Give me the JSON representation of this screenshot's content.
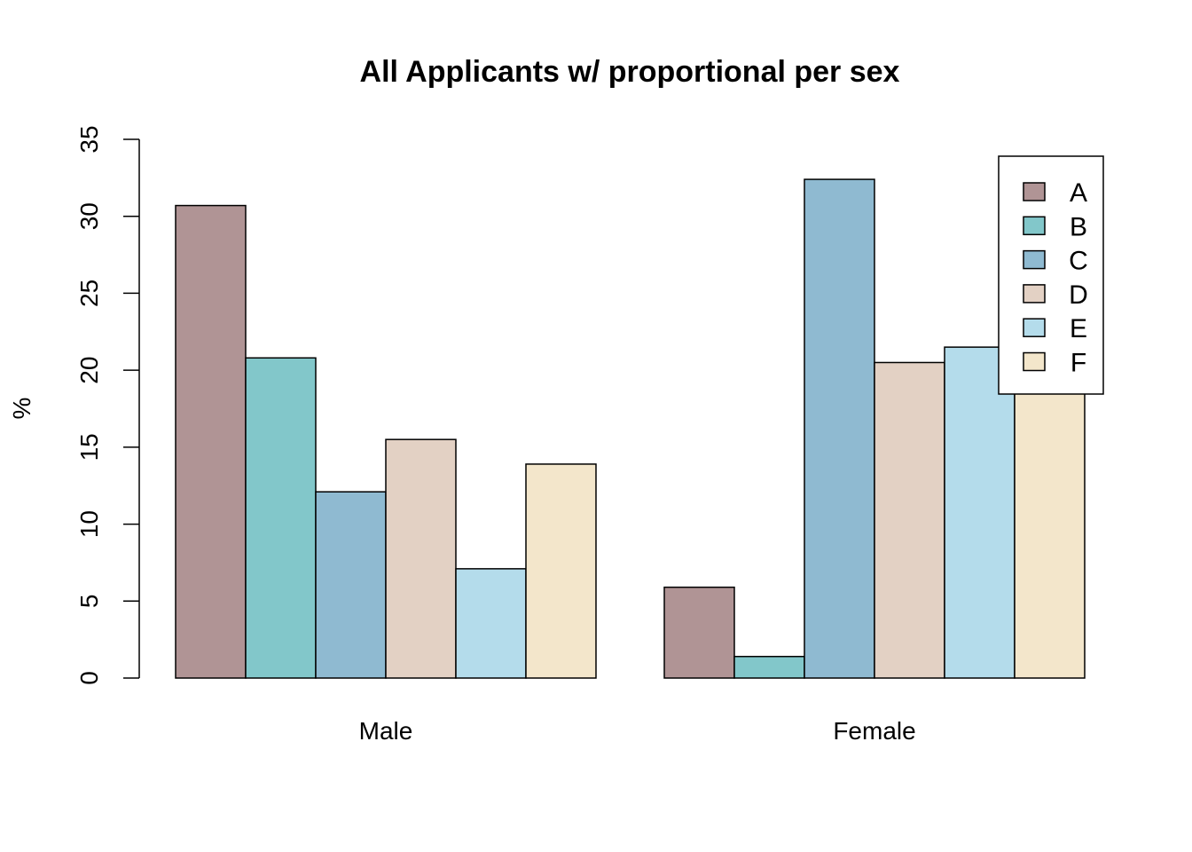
{
  "chart_data": {
    "type": "bar",
    "mode": "grouped",
    "title": "All Applicants w/ proportional per sex",
    "xlabel": "",
    "ylabel": "%",
    "ylim": [
      0,
      35
    ],
    "yticks": [
      0,
      5,
      10,
      15,
      20,
      25,
      30,
      35
    ],
    "grid": false,
    "legend_position": "top-right",
    "categories": [
      "Male",
      "Female"
    ],
    "series": [
      {
        "name": "A",
        "color": "#B09495",
        "values": [
          30.7,
          5.9
        ]
      },
      {
        "name": "B",
        "color": "#82C7CA",
        "values": [
          20.8,
          1.4
        ]
      },
      {
        "name": "C",
        "color": "#8FBAD1",
        "values": [
          12.1,
          32.4
        ]
      },
      {
        "name": "D",
        "color": "#E3D1C4",
        "values": [
          15.5,
          20.5
        ]
      },
      {
        "name": "E",
        "color": "#B4DCEB",
        "values": [
          7.1,
          21.5
        ]
      },
      {
        "name": "F",
        "color": "#F3E6CB",
        "values": [
          13.9,
          18.8
        ]
      }
    ]
  }
}
